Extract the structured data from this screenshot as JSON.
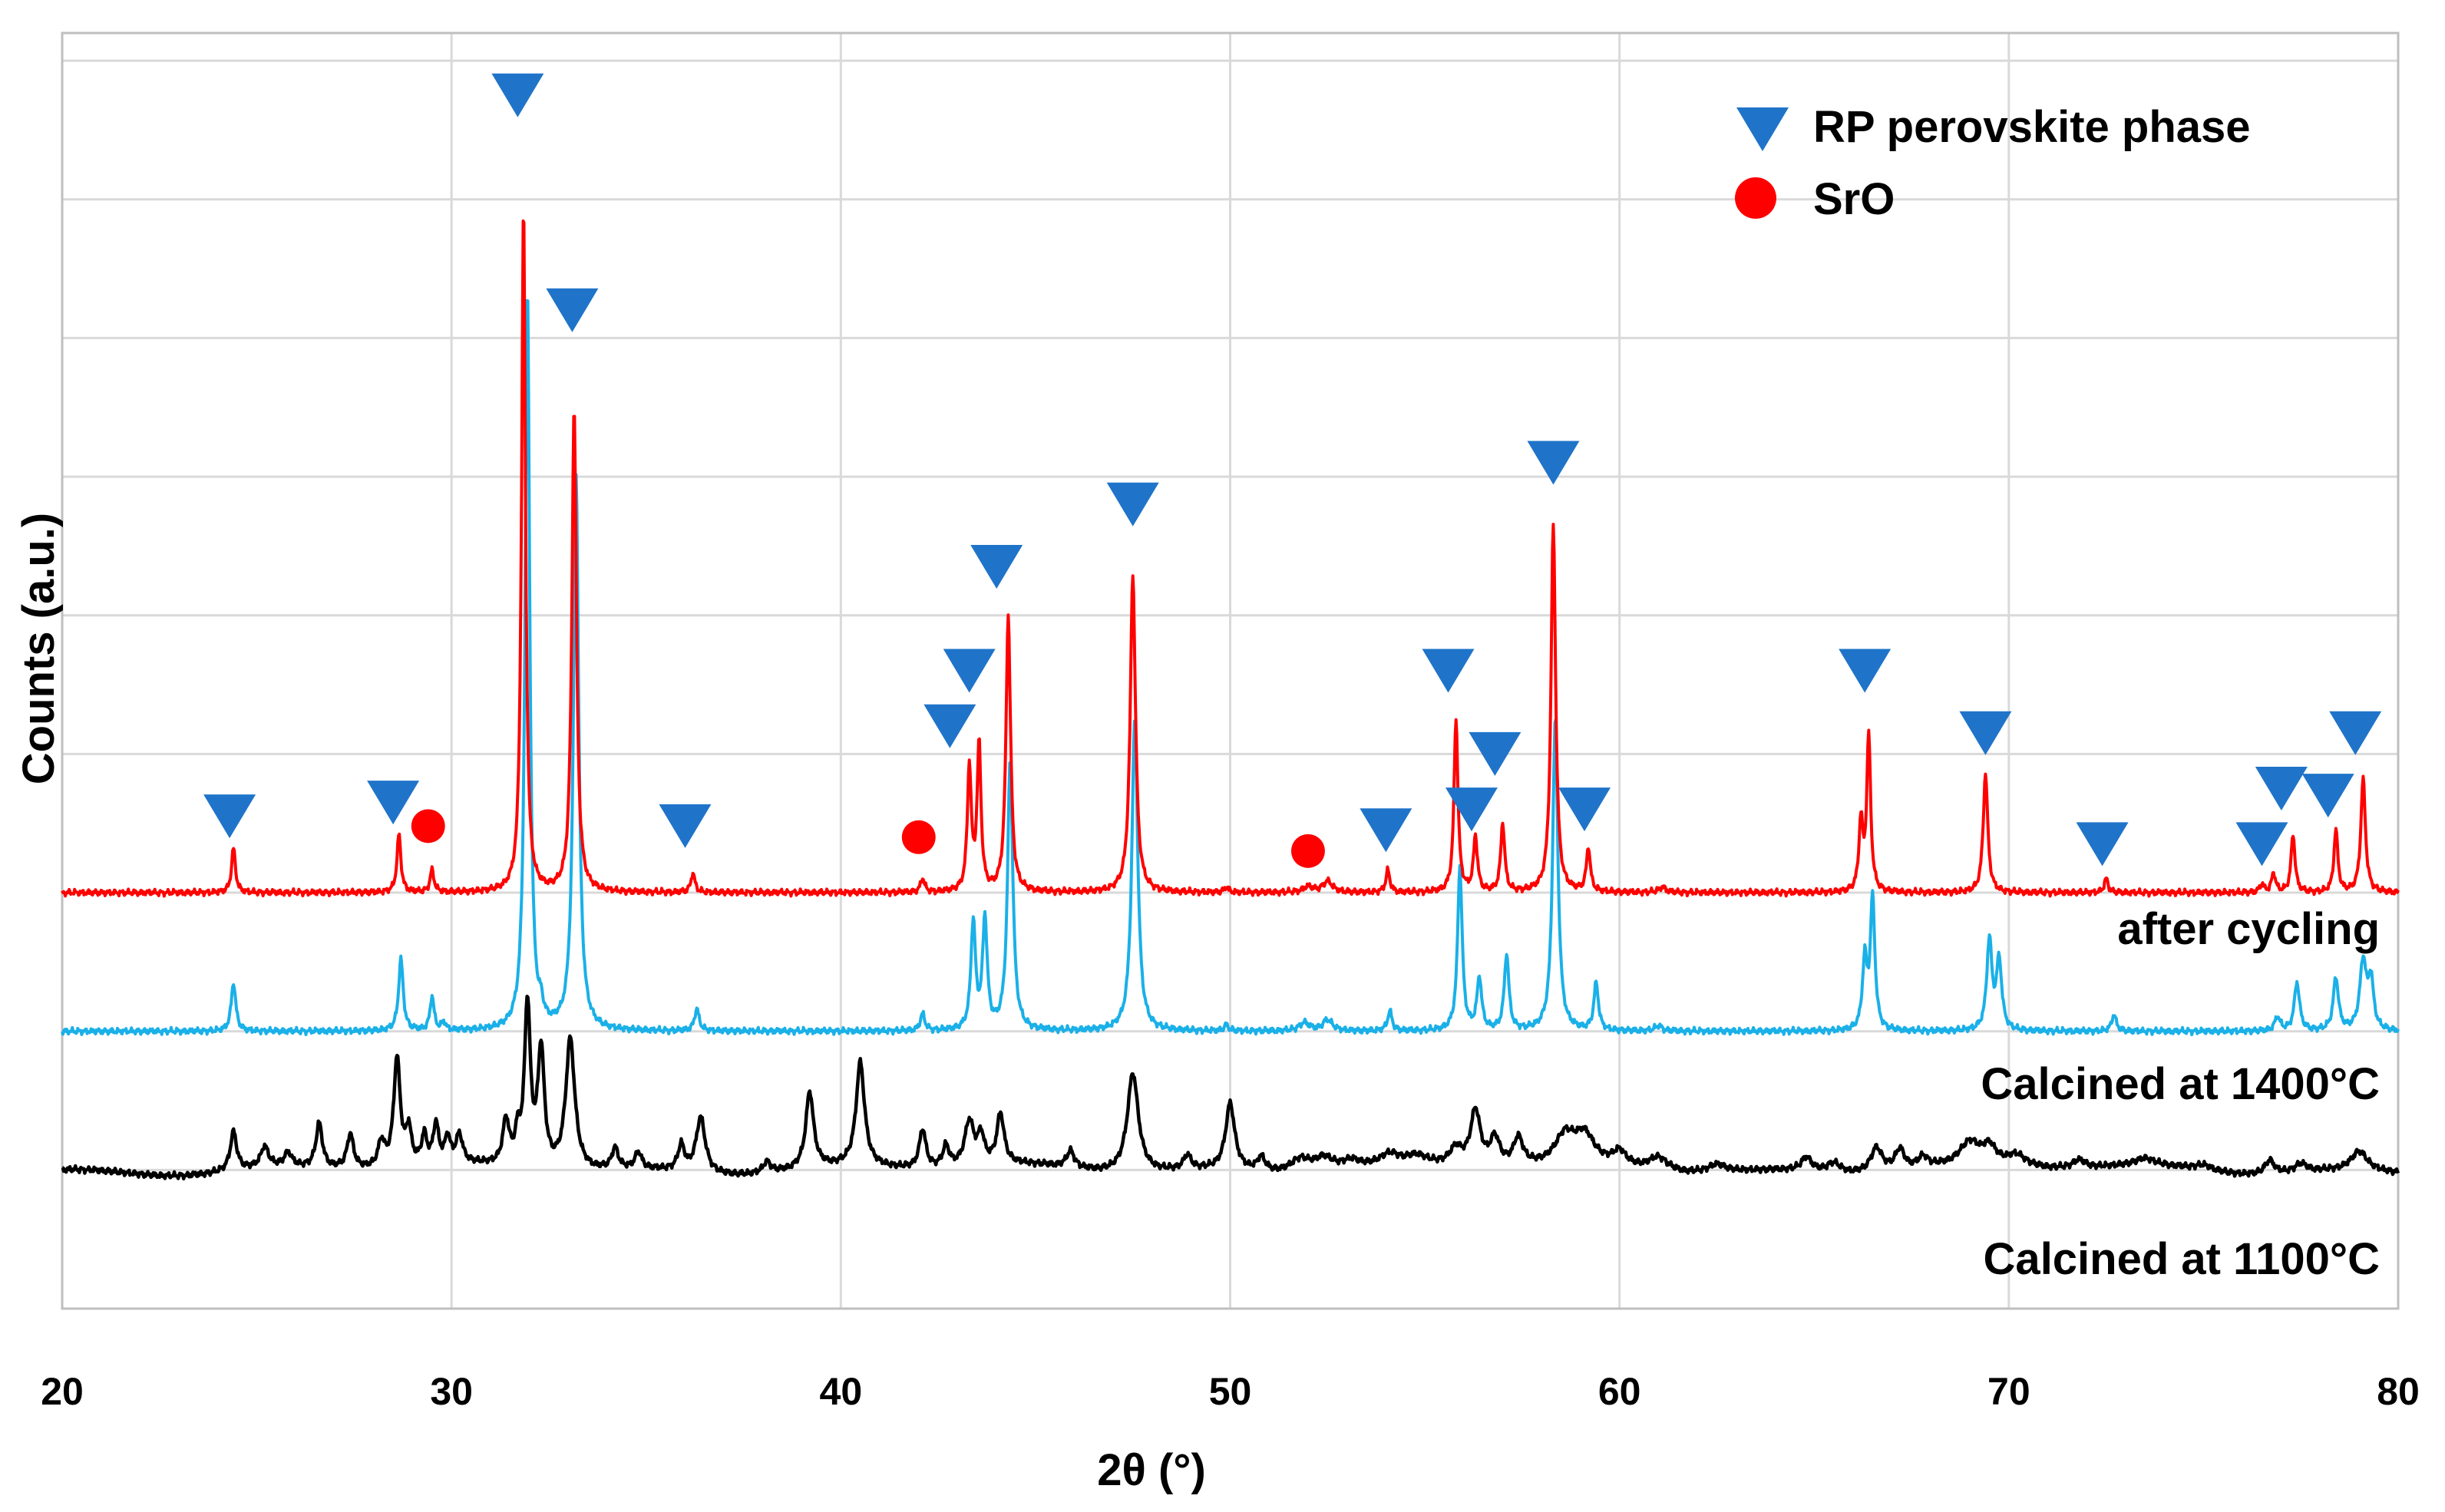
{
  "chart_data": {
    "type": "line",
    "title": "",
    "xlabel": "2θ (°)",
    "ylabel": "Counts (a.u.)",
    "xlim": [
      20,
      80
    ],
    "ylim": [
      0,
      9.2
    ],
    "x_ticks": [
      "20",
      "30",
      "40",
      "50",
      "60",
      "70",
      "80"
    ],
    "x_tick_values": [
      20,
      30,
      40,
      50,
      60,
      70,
      80
    ],
    "y_gridlines": [
      1,
      2,
      3,
      4,
      5,
      6,
      7,
      8,
      9
    ],
    "grid": true,
    "legend": {
      "placement": "top-right",
      "entries": [
        {
          "label": "RP perovskite phase",
          "marker": "triangle-down",
          "color": "#1f74c9"
        },
        {
          "label": "SrO",
          "marker": "circle",
          "color": "#ff0000"
        }
      ]
    },
    "series": [
      {
        "name": "Calcined at 1100°C",
        "color": "#000000",
        "baseline": 1.0,
        "peaks": [
          [
            24.4,
            0.28,
            0.1
          ],
          [
            25.2,
            0.15,
            0.12
          ],
          [
            25.8,
            0.1,
            0.12
          ],
          [
            26.6,
            0.32,
            0.1
          ],
          [
            27.4,
            0.25,
            0.1
          ],
          [
            28.2,
            0.18,
            0.1
          ],
          [
            28.6,
            0.78,
            0.1
          ],
          [
            28.9,
            0.25,
            0.08
          ],
          [
            29.3,
            0.2,
            0.08
          ],
          [
            29.6,
            0.28,
            0.08
          ],
          [
            29.9,
            0.18,
            0.08
          ],
          [
            30.2,
            0.2,
            0.1
          ],
          [
            31.4,
            0.32,
            0.1
          ],
          [
            31.7,
            0.2,
            0.08
          ],
          [
            31.95,
            1.17,
            0.09
          ],
          [
            32.3,
            0.85,
            0.1
          ],
          [
            33.05,
            0.95,
            0.14
          ],
          [
            34.2,
            0.15,
            0.1
          ],
          [
            34.8,
            0.12,
            0.1
          ],
          [
            35.9,
            0.18,
            0.1
          ],
          [
            36.4,
            0.4,
            0.14
          ],
          [
            38.1,
            0.08,
            0.12
          ],
          [
            39.2,
            0.55,
            0.12
          ],
          [
            40.5,
            0.75,
            0.13
          ],
          [
            42.1,
            0.28,
            0.1
          ],
          [
            42.7,
            0.15,
            0.1
          ],
          [
            43.3,
            0.32,
            0.14
          ],
          [
            43.6,
            0.2,
            0.1
          ],
          [
            44.1,
            0.36,
            0.11
          ],
          [
            45.9,
            0.12,
            0.12
          ],
          [
            47.5,
            0.72,
            0.17
          ],
          [
            48.9,
            0.1,
            0.12
          ],
          [
            50.0,
            0.48,
            0.14
          ],
          [
            50.8,
            0.1,
            0.12
          ],
          [
            51.8,
            0.1,
            0.3
          ],
          [
            52.4,
            0.1,
            0.3
          ],
          [
            53.1,
            0.06,
            0.3
          ],
          [
            54.1,
            0.08,
            0.3
          ],
          [
            54.8,
            0.06,
            0.3
          ],
          [
            55.8,
            0.12,
            0.2
          ],
          [
            56.3,
            0.4,
            0.15
          ],
          [
            56.8,
            0.2,
            0.15
          ],
          [
            57.4,
            0.2,
            0.15
          ],
          [
            58.6,
            0.2,
            0.3
          ],
          [
            59.1,
            0.2,
            0.3
          ],
          [
            60.0,
            0.1,
            0.2
          ],
          [
            61.0,
            0.1,
            0.3
          ],
          [
            62.5,
            0.06,
            0.3
          ],
          [
            64.8,
            0.1,
            0.15
          ],
          [
            65.5,
            0.07,
            0.2
          ],
          [
            66.6,
            0.18,
            0.18
          ],
          [
            67.2,
            0.15,
            0.15
          ],
          [
            67.8,
            0.08,
            0.15
          ],
          [
            69.0,
            0.16,
            0.3
          ],
          [
            69.5,
            0.12,
            0.2
          ],
          [
            70.2,
            0.08,
            0.3
          ],
          [
            71.8,
            0.06,
            0.2
          ],
          [
            73.5,
            0.05,
            0.3
          ],
          [
            75.0,
            0.04,
            0.3
          ],
          [
            76.7,
            0.1,
            0.15
          ],
          [
            77.5,
            0.06,
            0.2
          ],
          [
            79.0,
            0.14,
            0.25
          ]
        ]
      },
      {
        "name": "Calcined at 1400°C",
        "color": "#1ab0e8",
        "baseline": 2.0,
        "peaks": [
          [
            24.4,
            0.35,
            0.07
          ],
          [
            28.7,
            0.52,
            0.07
          ],
          [
            29.5,
            0.25,
            0.06
          ],
          [
            29.8,
            0.06,
            0.06
          ],
          [
            31.95,
            5.35,
            0.07
          ],
          [
            32.3,
            0.1,
            0.06
          ],
          [
            33.2,
            4.0,
            0.08
          ],
          [
            36.3,
            0.16,
            0.07
          ],
          [
            42.1,
            0.12,
            0.07
          ],
          [
            43.4,
            0.78,
            0.07
          ],
          [
            43.7,
            0.8,
            0.07
          ],
          [
            44.35,
            1.95,
            0.08
          ],
          [
            47.55,
            2.25,
            0.09
          ],
          [
            49.9,
            0.04,
            0.07
          ],
          [
            51.9,
            0.06,
            0.15
          ],
          [
            52.5,
            0.08,
            0.15
          ],
          [
            54.1,
            0.14,
            0.07
          ],
          [
            55.9,
            1.18,
            0.07
          ],
          [
            56.4,
            0.38,
            0.07
          ],
          [
            57.1,
            0.55,
            0.07
          ],
          [
            58.35,
            2.25,
            0.08
          ],
          [
            59.4,
            0.34,
            0.07
          ],
          [
            61.0,
            0.04,
            0.1
          ],
          [
            66.3,
            0.5,
            0.07
          ],
          [
            66.5,
            0.95,
            0.07
          ],
          [
            69.5,
            0.65,
            0.08
          ],
          [
            69.75,
            0.5,
            0.08
          ],
          [
            72.7,
            0.12,
            0.07
          ],
          [
            76.9,
            0.1,
            0.08
          ],
          [
            77.4,
            0.35,
            0.08
          ],
          [
            78.4,
            0.38,
            0.08
          ],
          [
            79.1,
            0.5,
            0.1
          ],
          [
            79.3,
            0.35,
            0.08
          ]
        ]
      },
      {
        "name": "after cycling",
        "color": "#ff0000",
        "baseline": 3.0,
        "peaks": [
          [
            24.4,
            0.32,
            0.06
          ],
          [
            28.65,
            0.42,
            0.06
          ],
          [
            29.5,
            0.16,
            0.06
          ],
          [
            31.85,
            4.95,
            0.06
          ],
          [
            33.15,
            3.5,
            0.07
          ],
          [
            36.2,
            0.14,
            0.06
          ],
          [
            42.1,
            0.1,
            0.06
          ],
          [
            43.3,
            0.9,
            0.06
          ],
          [
            43.55,
            1.05,
            0.06
          ],
          [
            44.3,
            2.0,
            0.07
          ],
          [
            47.5,
            2.3,
            0.08
          ],
          [
            49.9,
            0.04,
            0.06
          ],
          [
            52.0,
            0.04,
            0.15
          ],
          [
            52.5,
            0.08,
            0.15
          ],
          [
            54.05,
            0.16,
            0.06
          ],
          [
            55.8,
            1.25,
            0.06
          ],
          [
            56.3,
            0.4,
            0.06
          ],
          [
            57.0,
            0.5,
            0.06
          ],
          [
            58.3,
            2.65,
            0.07
          ],
          [
            59.2,
            0.32,
            0.06
          ],
          [
            61.1,
            0.04,
            0.1
          ],
          [
            66.2,
            0.5,
            0.06
          ],
          [
            66.4,
            1.12,
            0.06
          ],
          [
            69.4,
            0.86,
            0.07
          ],
          [
            72.5,
            0.1,
            0.06
          ],
          [
            76.5,
            0.06,
            0.06
          ],
          [
            76.8,
            0.14,
            0.06
          ],
          [
            77.3,
            0.42,
            0.06
          ],
          [
            78.4,
            0.45,
            0.06
          ],
          [
            79.1,
            0.82,
            0.07
          ]
        ]
      }
    ],
    "series_labels": [
      "after cycling",
      "Calcined at 1400°C",
      "Calcined at 1100°C"
    ],
    "markers": [
      {
        "type": "triangle",
        "x": 24.3,
        "y": 3.55
      },
      {
        "type": "triangle",
        "x": 28.5,
        "y": 3.65
      },
      {
        "type": "circle",
        "x": 29.4,
        "y": 3.48
      },
      {
        "type": "triangle",
        "x": 31.7,
        "y": 8.75
      },
      {
        "type": "triangle",
        "x": 33.1,
        "y": 7.2
      },
      {
        "type": "triangle",
        "x": 36.0,
        "y": 3.48
      },
      {
        "type": "circle",
        "x": 42.0,
        "y": 3.4
      },
      {
        "type": "triangle",
        "x": 42.8,
        "y": 4.2
      },
      {
        "type": "triangle",
        "x": 43.3,
        "y": 4.6
      },
      {
        "type": "triangle",
        "x": 44.0,
        "y": 5.35
      },
      {
        "type": "triangle",
        "x": 47.5,
        "y": 5.8
      },
      {
        "type": "circle",
        "x": 52.0,
        "y": 3.3
      },
      {
        "type": "triangle",
        "x": 54.0,
        "y": 3.45
      },
      {
        "type": "triangle",
        "x": 55.6,
        "y": 4.6
      },
      {
        "type": "triangle",
        "x": 56.2,
        "y": 3.6
      },
      {
        "type": "triangle",
        "x": 56.8,
        "y": 4.0
      },
      {
        "type": "triangle",
        "x": 58.3,
        "y": 6.1
      },
      {
        "type": "triangle",
        "x": 59.1,
        "y": 3.6
      },
      {
        "type": "triangle",
        "x": 66.3,
        "y": 4.6
      },
      {
        "type": "triangle",
        "x": 69.4,
        "y": 4.15
      },
      {
        "type": "triangle",
        "x": 72.4,
        "y": 3.35
      },
      {
        "type": "triangle",
        "x": 76.5,
        "y": 3.35
      },
      {
        "type": "triangle",
        "x": 77.0,
        "y": 3.75
      },
      {
        "type": "triangle",
        "x": 78.2,
        "y": 3.7
      },
      {
        "type": "triangle",
        "x": 78.9,
        "y": 4.15
      }
    ]
  },
  "colors": {
    "triangle": "#1f74c9",
    "circle": "#ff0000",
    "grid": "#d9d9d9",
    "axis": "#bfbfbf"
  }
}
